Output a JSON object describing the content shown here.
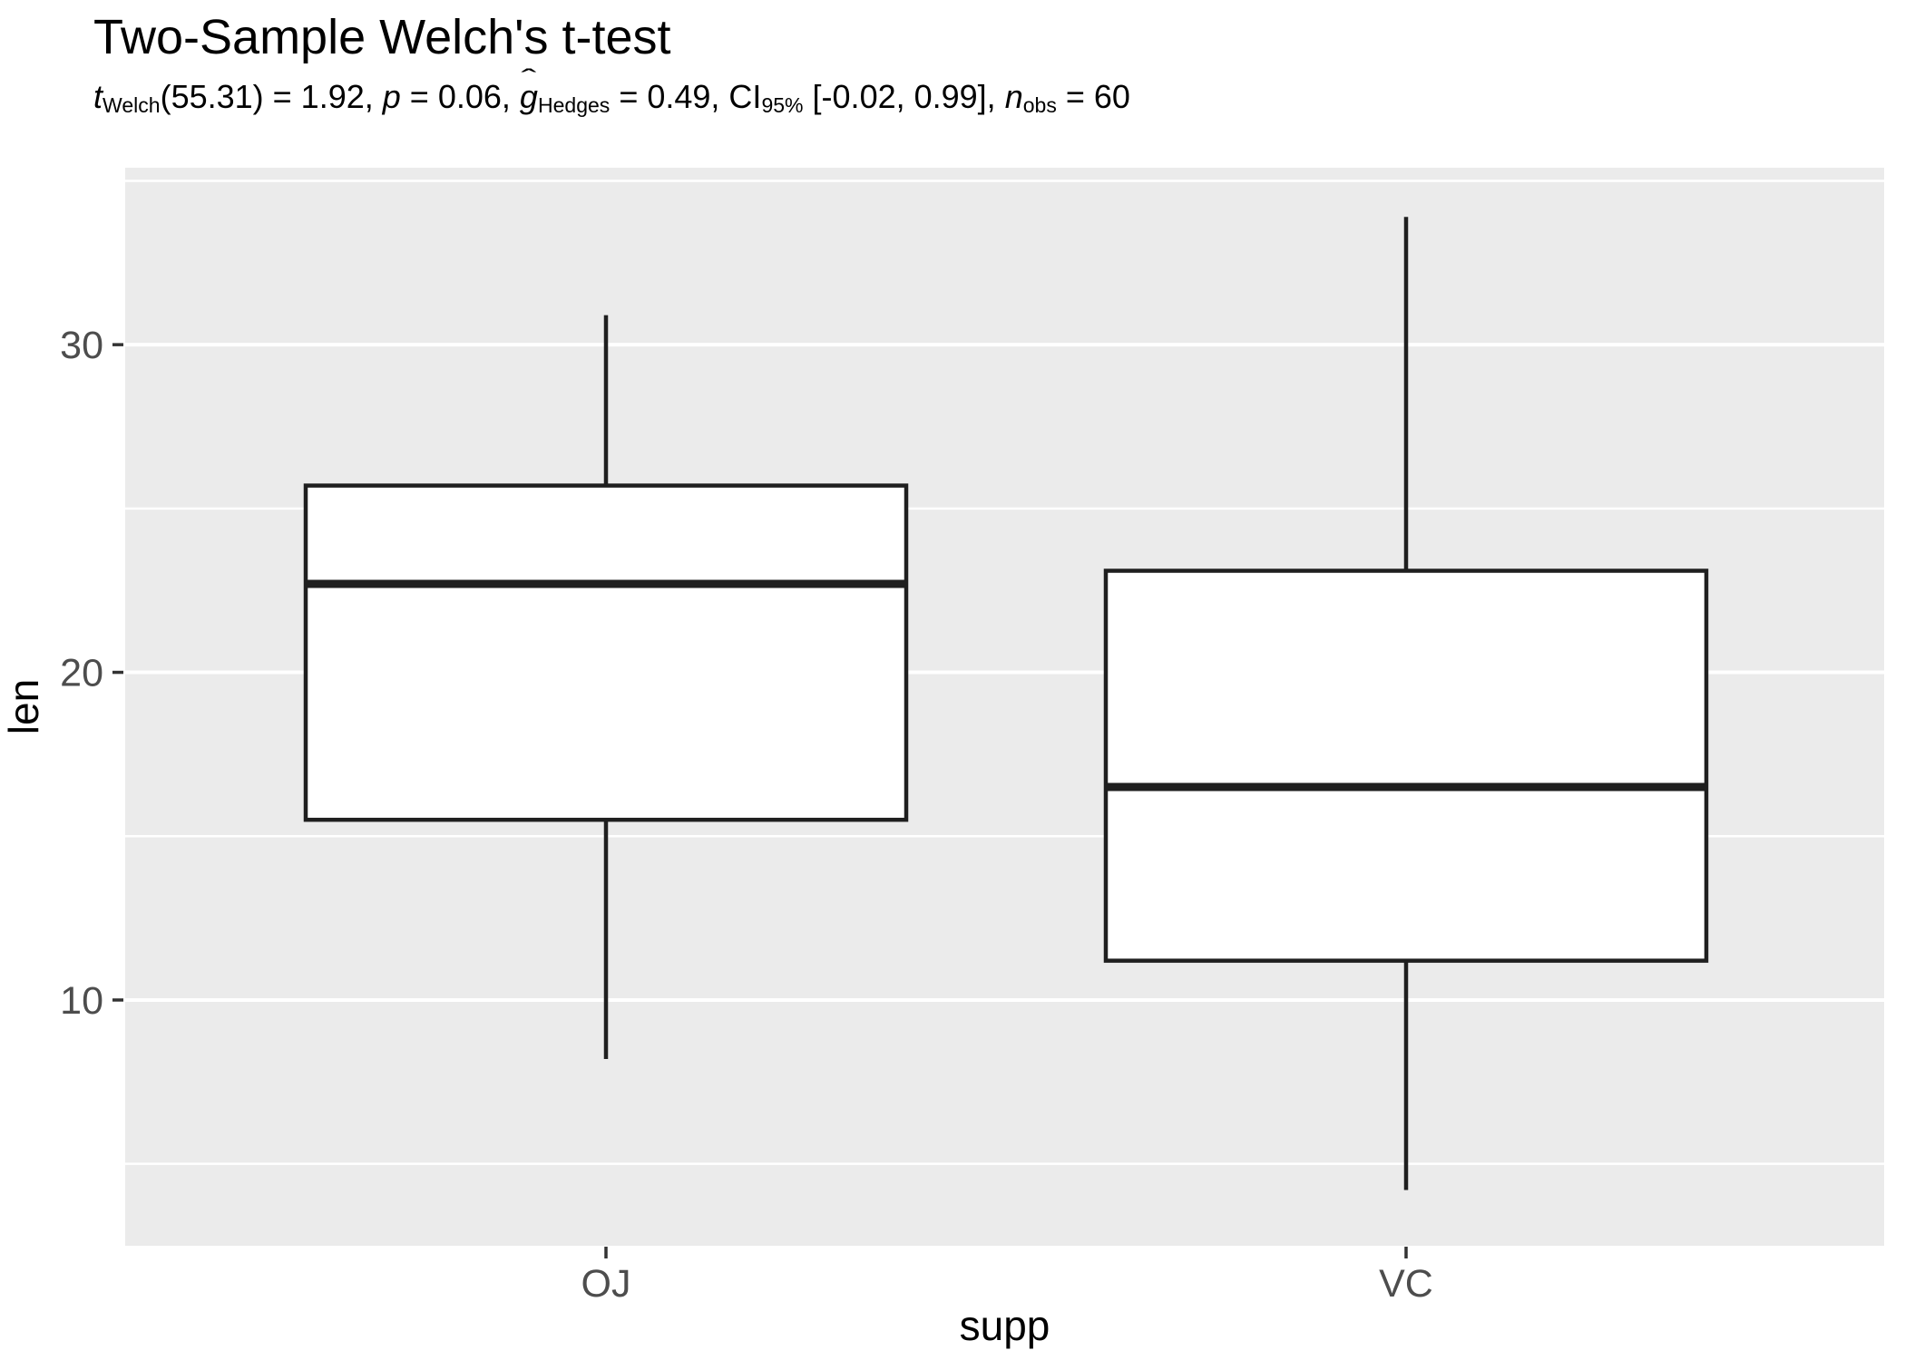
{
  "plot": {
    "title": "Two-Sample Welch's t-test"
  },
  "subtitle_parts": {
    "t": "t",
    "t_sub": "Welch",
    "stat1": "(55.31) = 1.92, ",
    "p": "p",
    "p_eq": " = 0.06, ",
    "hat": "ˆ",
    "g": "g",
    "g_sub": "Hedges",
    "g_eq": " = 0.49, CI",
    "ci_sub": "95%",
    "ci_val": " [-0.02, 0.99], ",
    "n": "n",
    "n_sub": "obs",
    "n_eq": " = 60"
  },
  "chart_data": {
    "type": "boxplot",
    "title": "Two-Sample Welch's t-test",
    "subtitle_plain": "t_Welch(55.31) = 1.92, p = 0.06, g_Hedges = 0.49, CI_95% [-0.02, 0.99], n_obs = 60",
    "stats": {
      "t": 1.92,
      "df": 55.31,
      "p": 0.06,
      "hedges_g": 0.49,
      "ci95": [
        -0.02,
        0.99
      ],
      "n_obs": 60
    },
    "xlabel": "supp",
    "ylabel": "len",
    "categories": [
      "OJ",
      "VC"
    ],
    "series": [
      {
        "name": "OJ",
        "min": 8.2,
        "q1": 15.5,
        "median": 22.7,
        "q3": 25.7,
        "max": 30.9
      },
      {
        "name": "VC",
        "min": 4.2,
        "q1": 11.2,
        "median": 16.5,
        "q3": 23.1,
        "max": 33.9
      }
    ],
    "ylim": [
      2.5,
      35.4
    ],
    "yticks": [
      10,
      20,
      30
    ],
    "yticks_minor": [
      5,
      15,
      25,
      35
    ],
    "grid": true,
    "legend": "none",
    "colors": {
      "panel": "#EBEBEB",
      "grid_major": "#FFFFFF",
      "grid_minor": "#FFFFFF",
      "box_stroke": "#1F1F1F",
      "box_fill": "#FFFFFF",
      "tick_mark": "#333333",
      "tick_label": "#4D4D4D",
      "axis_title": "#000000",
      "title_color": "#000000"
    }
  }
}
